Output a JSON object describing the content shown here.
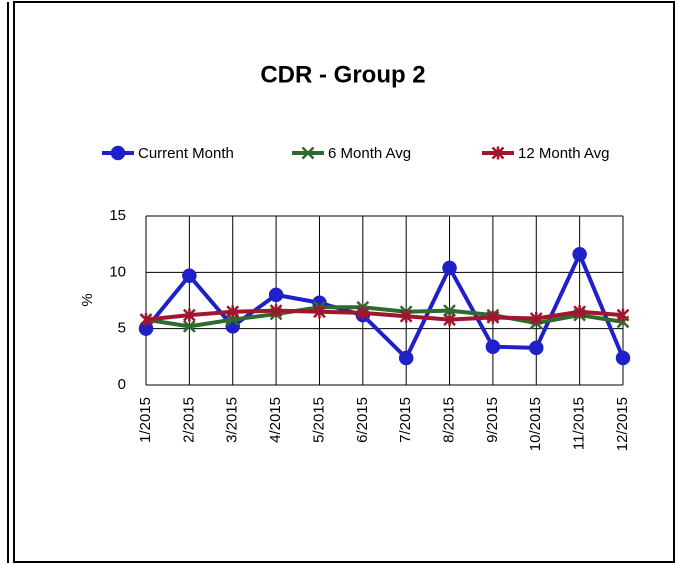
{
  "chart_data": {
    "type": "line",
    "title": "CDR - Group 2",
    "y_label": "%",
    "categories": [
      "1/2015",
      "2/2015",
      "3/2015",
      "4/2015",
      "5/2015",
      "6/2015",
      "7/2015",
      "8/2015",
      "9/2015",
      "10/2015",
      "11/2015",
      "12/2015"
    ],
    "series": [
      {
        "name": "Current Month",
        "color": "#2020c8",
        "marker": "circle",
        "values": [
          5.0,
          9.7,
          5.2,
          8.0,
          7.3,
          6.2,
          2.4,
          10.4,
          3.4,
          3.3,
          11.6,
          2.4
        ]
      },
      {
        "name": "6 Month Avg",
        "color": "#2e6b2e",
        "marker": "x",
        "values": [
          5.8,
          5.2,
          5.8,
          6.3,
          6.9,
          6.9,
          6.5,
          6.6,
          6.2,
          5.5,
          6.2,
          5.6
        ]
      },
      {
        "name": "12 Month Avg",
        "color": "#a0162e",
        "marker": "star",
        "values": [
          5.8,
          6.2,
          6.5,
          6.6,
          6.5,
          6.4,
          6.1,
          5.8,
          6.0,
          5.9,
          6.5,
          6.2
        ]
      }
    ],
    "ylim": [
      0,
      15
    ],
    "yticks": [
      0,
      5,
      10,
      15
    ],
    "grid": true
  }
}
